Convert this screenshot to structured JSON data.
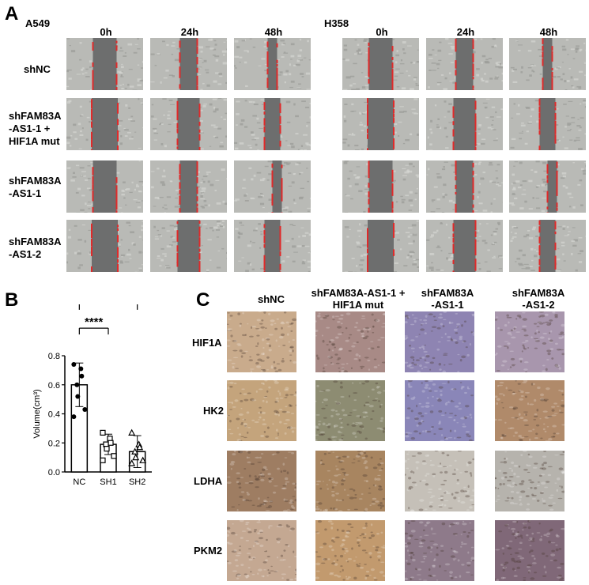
{
  "panels": {
    "A": "A",
    "B": "B",
    "C": "C"
  },
  "panel_a": {
    "cell_lines": [
      "A549",
      "H358"
    ],
    "timepoints": [
      "0h",
      "24h",
      "48h"
    ],
    "rows": [
      [
        "shNC"
      ],
      [
        "shFAM83A",
        "-AS1-1 +",
        "HIF1A mut"
      ],
      [
        "shFAM83A",
        "-AS1-1"
      ],
      [
        "shFAM83A",
        "-AS1-2"
      ]
    ]
  },
  "chart_data": {
    "type": "bar",
    "categories": [
      "NC",
      "SH1",
      "SH2"
    ],
    "values": [
      0.6,
      0.19,
      0.14
    ],
    "errors": [
      0.15,
      0.07,
      0.11
    ],
    "points": [
      [
        0.74,
        0.71,
        0.66,
        0.6,
        0.52,
        0.43,
        0.38
      ],
      [
        0.27,
        0.23,
        0.2,
        0.19,
        0.16,
        0.11,
        0.08
      ],
      [
        0.27,
        0.19,
        0.17,
        0.14,
        0.1,
        0.08,
        0.06
      ]
    ],
    "markers": [
      "circle",
      "square",
      "triangle"
    ],
    "ylabel": "Volume(cm³)",
    "xlabel": "",
    "ylim": [
      0,
      0.8
    ],
    "yticks": [
      "0.0",
      "0.2",
      "0.4",
      "0.6",
      "0.8"
    ],
    "significance": [
      {
        "from": "NC",
        "to": "SH1",
        "label": "****"
      },
      {
        "from": "NC",
        "to": "SH2",
        "label": "****"
      }
    ]
  },
  "panel_c": {
    "columns": [
      [
        "shNC"
      ],
      [
        "shFAM83A-AS1-1 +",
        "HIF1A mut"
      ],
      [
        "shFAM83A",
        "-AS1-1"
      ],
      [
        "shFAM83A",
        "-AS1-2"
      ]
    ],
    "rows": [
      "HIF1A",
      "HK2",
      "LDHA",
      "PKM2"
    ],
    "stain_colors": [
      [
        "#c9ab8c",
        "#a88a86",
        "#8e84b2",
        "#a896ad"
      ],
      [
        "#c4a47c",
        "#8d8c72",
        "#8a86b8",
        "#b08a6a"
      ],
      [
        "#9e7d62",
        "#a88560",
        "#c5c0b8",
        "#b6b3ad"
      ],
      [
        "#c4a892",
        "#c29a6e",
        "#8e7a8a",
        "#806878"
      ]
    ]
  }
}
